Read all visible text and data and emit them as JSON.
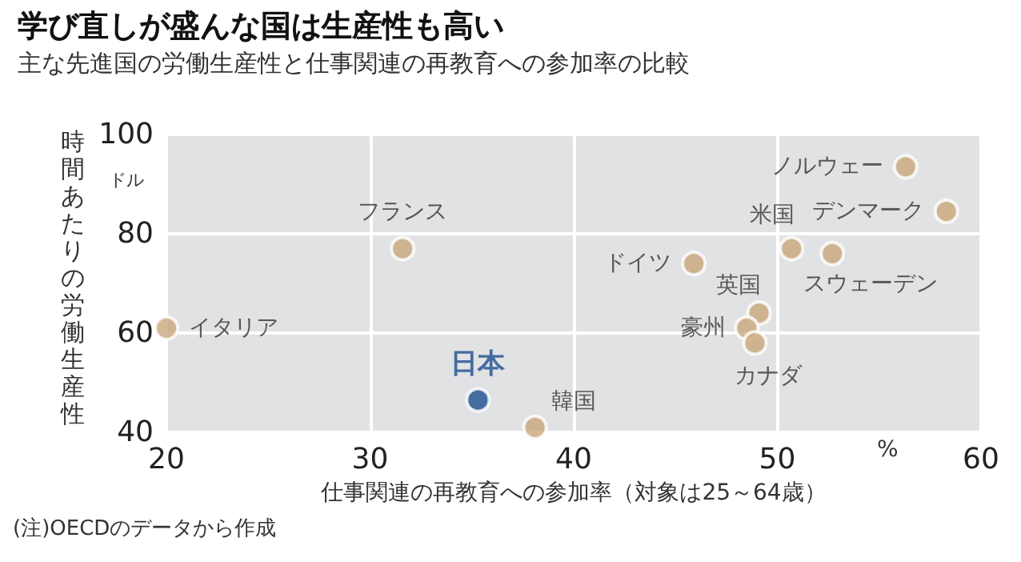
{
  "chart_data": {
    "type": "scatter",
    "title": "学び直しが盛んな国は生産性も高い",
    "subtitle": "主な先進国の労働生産性と仕事関連の再教育への参加率の比較",
    "xlabel": "仕事関連の再教育への参加率（対象は25～64歳）",
    "ylabel": "時間あたりの労働生産性",
    "annotations": [
      "ドル",
      "%",
      "(注)OECDのデータから作成"
    ],
    "xlim": [
      20,
      60
    ],
    "xticks": [
      20,
      30,
      40,
      50,
      60
    ],
    "ylim": [
      40,
      100
    ],
    "yticks": [
      40,
      60,
      80,
      100
    ],
    "grid": true,
    "legend": false,
    "marker": "circle",
    "series": [
      {
        "name": "イタリア",
        "color": "#c9a77c",
        "x": [
          20
        ],
        "values": [
          61
        ]
      },
      {
        "name": "フランス",
        "color": "#c9a77c",
        "x": [
          31.6
        ],
        "values": [
          77
        ]
      },
      {
        "name": "日本",
        "color": "#1d4f8f",
        "x": [
          35.3
        ],
        "values": [
          46.5
        ]
      },
      {
        "name": "韓国",
        "color": "#c9a77c",
        "x": [
          38.1
        ],
        "values": [
          41
        ]
      },
      {
        "name": "ドイツ",
        "color": "#c9a77c",
        "x": [
          45.9
        ],
        "values": [
          74
        ]
      },
      {
        "name": "米国",
        "color": "#c9a77c",
        "x": [
          50.7
        ],
        "values": [
          77
        ]
      },
      {
        "name": "スウェーデン",
        "color": "#c9a77c",
        "x": [
          52.7
        ],
        "values": [
          76
        ]
      },
      {
        "name": "ノルウェー",
        "color": "#c9a77c",
        "x": [
          56.3
        ],
        "values": [
          93.5
        ]
      },
      {
        "name": "デンマーク",
        "color": "#c9a77c",
        "x": [
          58.3
        ],
        "values": [
          84.5
        ]
      },
      {
        "name": "英国",
        "color": "#c9a77c",
        "x": [
          49.1
        ],
        "values": [
          64
        ]
      },
      {
        "name": "豪州",
        "color": "#c9a77c",
        "x": [
          48.5
        ],
        "values": [
          61
        ]
      },
      {
        "name": "カナダ",
        "color": "#c9a77c",
        "x": [
          48.9
        ],
        "values": [
          58
        ]
      }
    ]
  }
}
